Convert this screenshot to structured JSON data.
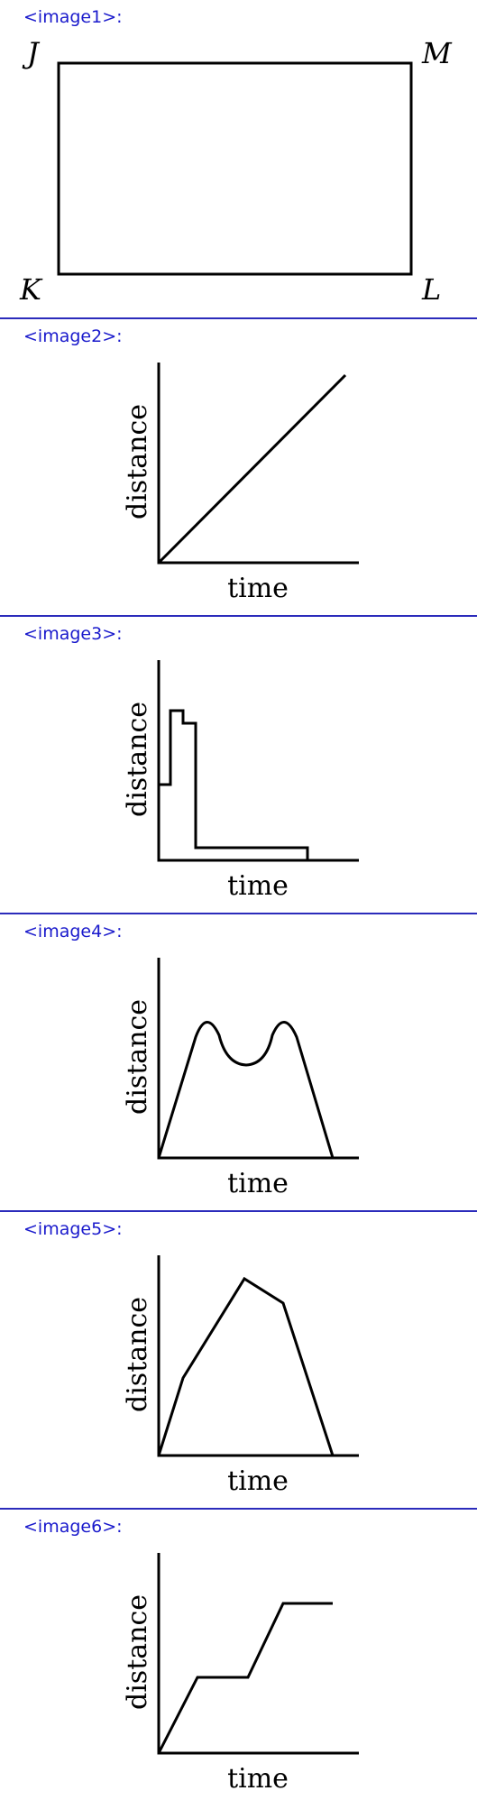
{
  "panels": [
    {
      "label": "<image1>:",
      "kind": "rectangle",
      "vertices": {
        "top_left": "J",
        "top_right": "M",
        "bottom_left": "K",
        "bottom_right": "L"
      }
    },
    {
      "label": "<image2>:",
      "kind": "graph",
      "ylabel": "distance",
      "xlabel": "time"
    },
    {
      "label": "<image3>:",
      "kind": "graph",
      "ylabel": "distance",
      "xlabel": "time"
    },
    {
      "label": "<image4>:",
      "kind": "graph",
      "ylabel": "distance",
      "xlabel": "time"
    },
    {
      "label": "<image5>:",
      "kind": "graph",
      "ylabel": "distance",
      "xlabel": "time"
    },
    {
      "label": "<image6>:",
      "kind": "graph",
      "ylabel": "distance",
      "xlabel": "time"
    }
  ],
  "colors": {
    "label": "#1a1acc",
    "divider": "#2b2bbb",
    "ink": "#000000"
  }
}
